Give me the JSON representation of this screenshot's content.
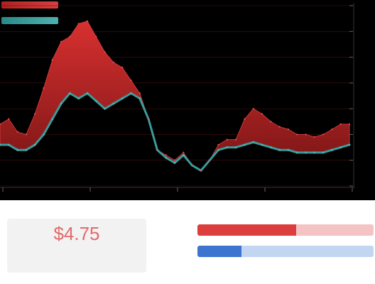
{
  "chart_data": {
    "type": "area",
    "x": [
      0,
      1,
      2,
      3,
      4,
      5,
      6,
      7,
      8,
      9,
      10,
      11,
      12,
      13,
      14,
      15,
      16,
      17,
      18,
      19,
      20,
      21,
      22,
      23,
      24,
      25,
      26,
      27,
      28,
      29,
      30,
      31,
      32,
      33,
      34,
      35,
      36,
      37,
      38,
      39,
      40
    ],
    "series": [
      {
        "color": "#c42a2a",
        "values": [
          6.4,
          6.6,
          6.1,
          6.0,
          6.8,
          7.8,
          8.9,
          9.6,
          9.8,
          10.3,
          10.4,
          9.8,
          9.2,
          8.8,
          8.6,
          8.1,
          7.6,
          6.6,
          5.4,
          5.2,
          5.0,
          5.3,
          4.8,
          4.6,
          5.0,
          5.6,
          5.8,
          5.8,
          6.6,
          7.0,
          6.8,
          6.5,
          6.3,
          6.2,
          6.0,
          6.0,
          5.9,
          6.0,
          6.2,
          6.4,
          6.4
        ]
      },
      {
        "color": "#3a9b9b",
        "values": [
          5.6,
          5.6,
          5.4,
          5.4,
          5.6,
          6.0,
          6.6,
          7.2,
          7.6,
          7.4,
          7.6,
          7.3,
          7.0,
          7.2,
          7.4,
          7.6,
          7.4,
          6.6,
          5.4,
          5.1,
          4.9,
          5.2,
          4.8,
          4.6,
          5.0,
          5.4,
          5.5,
          5.5,
          5.6,
          5.7,
          5.6,
          5.5,
          5.4,
          5.4,
          5.3,
          5.3,
          5.3,
          5.3,
          5.4,
          5.5,
          5.6
        ]
      }
    ],
    "ylim": [
      4,
      11
    ],
    "grid": true
  },
  "stats": {
    "value": "$4.75",
    "left_caption": "",
    "mid_caption": "",
    "right_caption": "",
    "footer_caption": ""
  },
  "bars": {
    "title": "",
    "red": {
      "label": "",
      "value": 0.56,
      "text": ""
    },
    "blue": {
      "label": "",
      "value": 0.25,
      "text": ""
    }
  },
  "footer": {
    "text": "",
    "highlight": ""
  }
}
